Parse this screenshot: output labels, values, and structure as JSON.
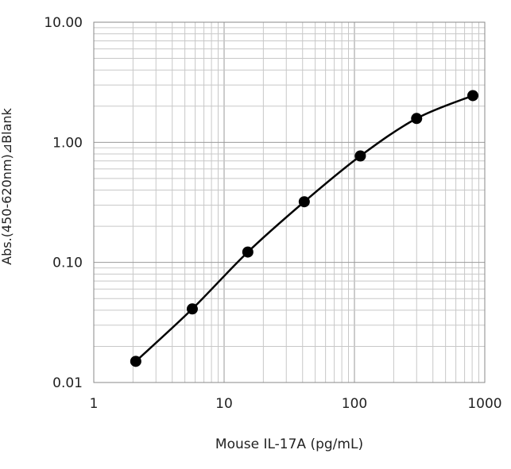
{
  "chart_data": {
    "type": "scatter",
    "title": "",
    "xlabel": "Mouse IL-17A (pg/mL)",
    "ylabel": "Abs.(450-620nm)⊿Blank",
    "x_scale": "log",
    "y_scale": "log",
    "xlim": [
      1,
      1000
    ],
    "ylim": [
      0.01,
      10
    ],
    "grid": true,
    "legend": "none",
    "x_ticks": [
      "1",
      "10",
      "100",
      "1000"
    ],
    "y_ticks": [
      "0.01",
      "0.10",
      "1.00",
      "10.00"
    ],
    "series": [
      {
        "x": [
          2.1,
          5.7,
          15.2,
          41.2,
          111,
          300,
          810
        ],
        "y": [
          0.015,
          0.041,
          0.122,
          0.32,
          0.77,
          1.58,
          2.45
        ],
        "marker": "circle",
        "line": "smooth",
        "color": "#000000"
      }
    ]
  }
}
